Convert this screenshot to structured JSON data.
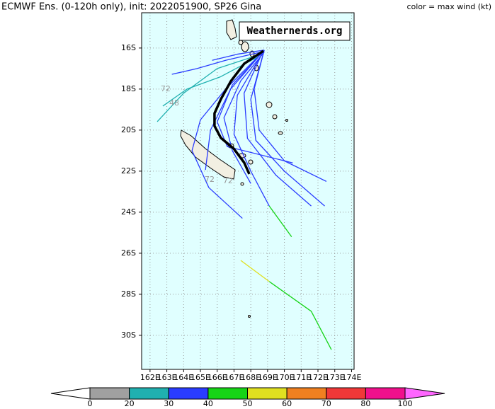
{
  "chart_data": {
    "type": "tracks",
    "title": "ECMWF Ens. (0-120h only), init: 2022051900, SP26 Gina",
    "subtitle": "color = max wind (kt)",
    "watermark": "Weathernerds.org",
    "xlim": [
      161.5,
      174.15
    ],
    "ylim": [
      -31.66,
      -14.28
    ],
    "xticks": [
      {
        "value": 162,
        "label": "162E"
      },
      {
        "value": 163,
        "label": "163E"
      },
      {
        "value": 164,
        "label": "164E"
      },
      {
        "value": 165,
        "label": "165E"
      },
      {
        "value": 166,
        "label": "166E"
      },
      {
        "value": 167,
        "label": "167E"
      },
      {
        "value": 168,
        "label": "168E"
      },
      {
        "value": 169,
        "label": "169E"
      },
      {
        "value": 170,
        "label": "170E"
      },
      {
        "value": 171,
        "label": "171E"
      },
      {
        "value": 172,
        "label": "172E"
      },
      {
        "value": 173,
        "label": "173E"
      },
      {
        "value": 174,
        "label": "174E"
      }
    ],
    "yticks": [
      {
        "value": -16,
        "label": "16S"
      },
      {
        "value": -18,
        "label": "18S"
      },
      {
        "value": -20,
        "label": "20S"
      },
      {
        "value": -22,
        "label": "22S"
      },
      {
        "value": -24,
        "label": "24S"
      },
      {
        "value": -26,
        "label": "26S"
      },
      {
        "value": -28,
        "label": "28S"
      },
      {
        "value": -30,
        "label": "30S"
      }
    ],
    "grid": true,
    "series": [
      {
        "color": "#2a3cff",
        "x": [
          168.8,
          168.2,
          168.5,
          170.0,
          172.5
        ],
        "values": [
          -16.1,
          -18.0,
          -20.0,
          -21.5,
          -22.5
        ]
      },
      {
        "color": "#2a3cff",
        "x": [
          168.8,
          168.0,
          168.3,
          170.0,
          172.4
        ],
        "values": [
          -16.1,
          -18.5,
          -20.5,
          -22.0,
          -23.7
        ]
      },
      {
        "color": "#2a3cff",
        "x": [
          168.7,
          167.6,
          167.8,
          169.5,
          171.6
        ],
        "values": [
          -16.2,
          -18.2,
          -20.4,
          -22.2,
          -23.7
        ]
      },
      {
        "color": "#2a3cff",
        "x": [
          168.7,
          166.5,
          165.0,
          164.5,
          165.5,
          167.5
        ],
        "values": [
          -16.2,
          -18.0,
          -19.5,
          -21.0,
          -22.8,
          -24.3
        ]
      },
      {
        "color": "#2a3cff",
        "x": [
          168.8,
          167.2,
          167.0,
          168.0,
          169.1
        ],
        "values": [
          -16.1,
          -18.3,
          -20.2,
          -22.0,
          -23.7
        ]
      },
      {
        "color": "#16d416",
        "x": [
          169.1,
          170.43
        ],
        "values": [
          -23.7,
          -25.2
        ]
      },
      {
        "color": "#e0e020",
        "x": [
          167.4,
          169.1
        ],
        "values": [
          -26.35,
          -27.38
        ]
      },
      {
        "color": "#16d416",
        "x": [
          169.1,
          171.6,
          172.8
        ],
        "values": [
          -27.38,
          -28.83,
          -30.7
        ]
      },
      {
        "color": "#20b0b0",
        "x": [
          168.6,
          166.0,
          164.0,
          162.43
        ],
        "values": [
          -16.3,
          -17.0,
          -18.2,
          -19.59
        ]
      },
      {
        "color": "#2a3cff",
        "x": [
          168.6,
          166.5,
          164.8,
          163.3
        ],
        "values": [
          -16.2,
          -16.6,
          -17.0,
          -17.28
        ]
      },
      {
        "color": "#20b0b0",
        "x": [
          168.5,
          166.2,
          164.2,
          162.76
        ],
        "values": [
          -16.4,
          -17.4,
          -18.0,
          -18.83
        ]
      },
      {
        "color": "#2a3cff",
        "x": [
          168.7,
          166.8,
          165.6,
          165.3
        ],
        "values": [
          -16.2,
          -18.0,
          -20.0,
          -21.94
        ]
      },
      {
        "color": "#2a3cff",
        "x": [
          168.8,
          167.2,
          165.7
        ],
        "values": [
          -16.1,
          -16.3,
          -16.6
        ]
      },
      {
        "color": "#2a3cff",
        "x": [
          168.8,
          167.4,
          166.4,
          166.9,
          168.0
        ],
        "values": [
          -16.2,
          -17.6,
          -19.4,
          -21.0,
          -22.6
        ]
      },
      {
        "color": "#2a3cff",
        "x": [
          168.7,
          166.9,
          166.0,
          166.6,
          170.5
        ],
        "values": [
          -16.2,
          -17.8,
          -19.6,
          -20.8,
          -21.6
        ]
      },
      {
        "color": "#000000",
        "x": [
          168.75,
          167.61,
          166.81,
          166.22,
          165.84,
          165.84,
          166.22,
          166.98,
          167.61,
          167.91
        ],
        "values": [
          -16.14,
          -16.76,
          -17.62,
          -18.49,
          -19.18,
          -19.8,
          -20.38,
          -20.9,
          -21.59,
          -22.14
        ]
      }
    ],
    "annotations": [
      {
        "text": "72",
        "x": 162.93,
        "y": -18.0
      },
      {
        "text": "48",
        "x": 163.44,
        "y": -18.7
      },
      {
        "text": "72",
        "x": 165.55,
        "y": -22.42
      },
      {
        "text": "72",
        "x": 166.64,
        "y": -22.49
      }
    ],
    "colorbar": {
      "ticks": [
        0,
        20,
        30,
        40,
        50,
        60,
        70,
        80,
        100
      ],
      "colors": [
        "#a0a0a0",
        "#20b0b0",
        "#2a3cff",
        "#16d416",
        "#e0e020",
        "#f08020",
        "#f03838",
        "#f0108c"
      ],
      "under": "#ffffff",
      "over": "#ff66ff"
    }
  }
}
